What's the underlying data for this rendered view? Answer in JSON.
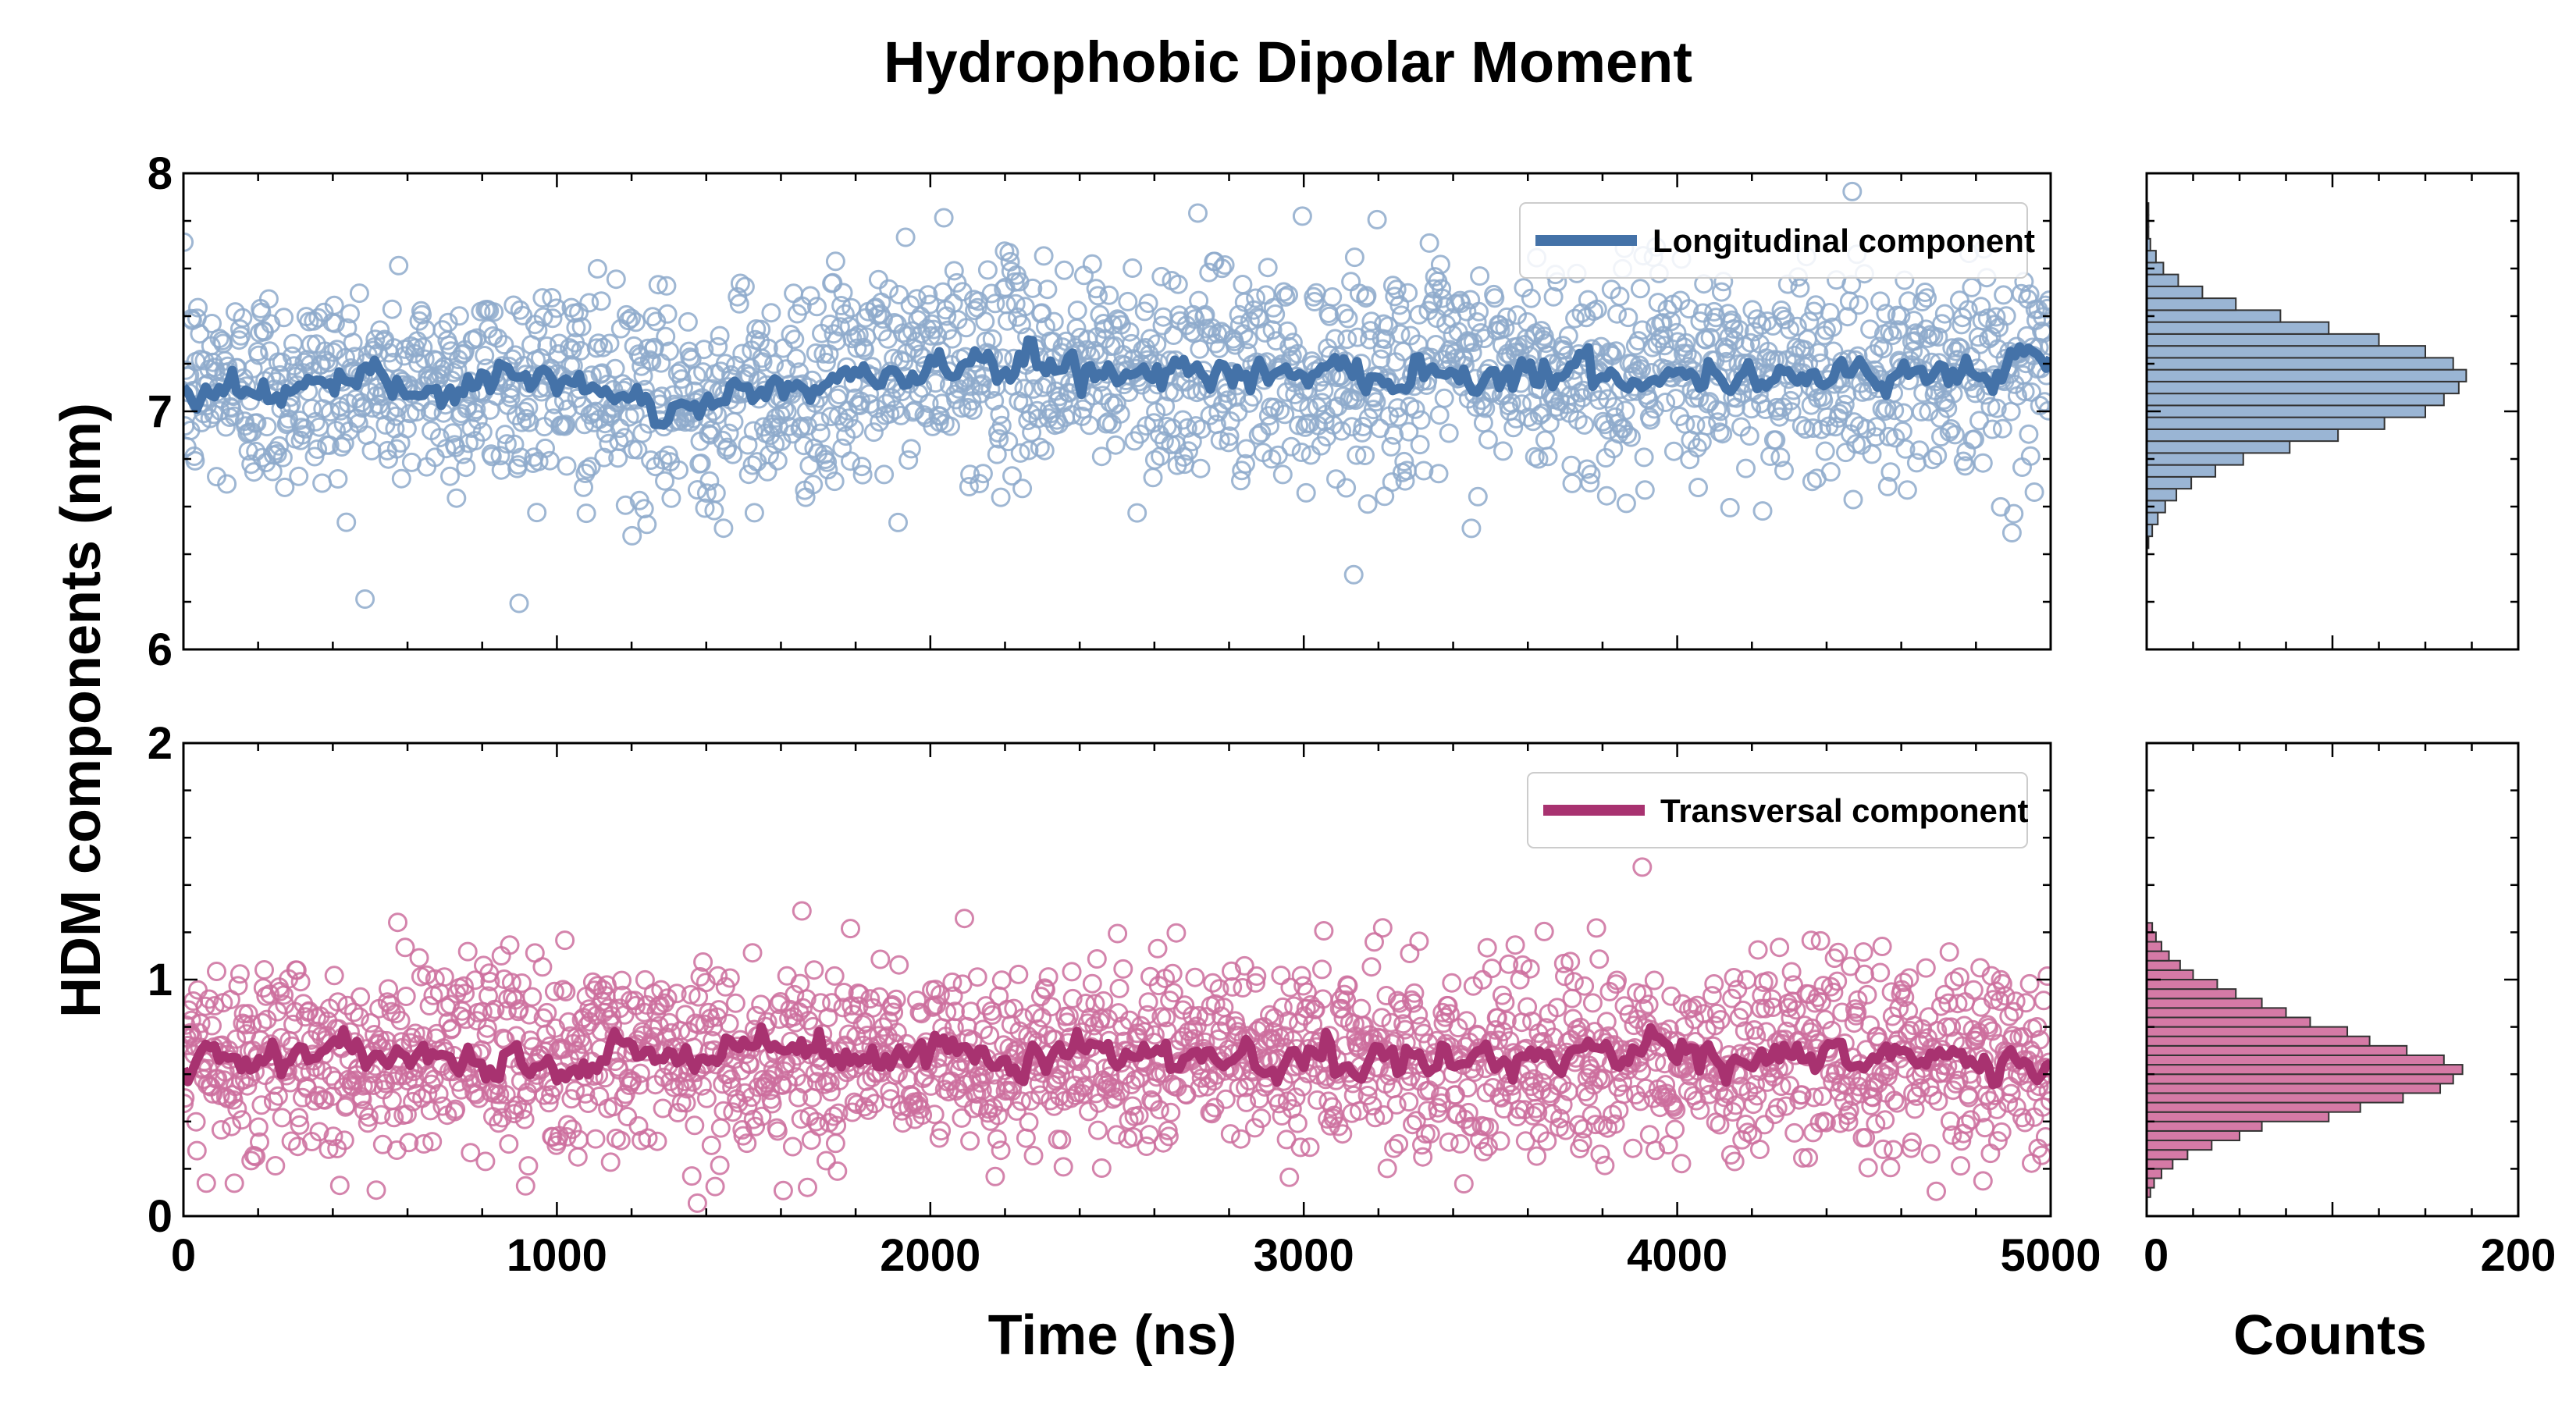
{
  "chart_data": {
    "title": "Hydrophobic Dipolar Moment",
    "ylabel": "HDM components (nm)",
    "xlabel": "Time (ns)",
    "hist_xlabel": "Counts",
    "colors": {
      "longitudinal": "#4472a8",
      "longitudinal_points": "#8eaacb",
      "longitudinal_hist": "#9ab5d4",
      "transversal": "#a83270",
      "transversal_points": "#cc6f9e",
      "transversal_hist": "#d57aa6"
    },
    "panels": [
      {
        "type": "scatter+line",
        "series_name": "Longitudinal component",
        "color_key": "longitudinal",
        "xlim": [
          0,
          5000
        ],
        "ylim": [
          6,
          8
        ],
        "xticks": [
          "0",
          "1000",
          "2000",
          "3000",
          "4000",
          "5000"
        ],
        "yticks": [
          "6",
          "7",
          "8"
        ],
        "show_xtick_labels": false,
        "running_mean_trend": {
          "x": [
            0,
            500,
            1000,
            1250,
            1500,
            1800,
            2000,
            2500,
            3000,
            3500,
            4000,
            4500,
            5000
          ],
          "y": [
            7.1,
            7.1,
            7.12,
            7.0,
            7.08,
            7.12,
            7.2,
            7.18,
            7.16,
            7.17,
            7.15,
            7.17,
            7.18
          ]
        },
        "point_spread_sd": 0.22,
        "n_points": 2000,
        "histogram": {
          "xlim": [
            0,
            200
          ],
          "xticks": [
            "0",
            "200"
          ],
          "bin_centers": [
            6.45,
            6.5,
            6.55,
            6.6,
            6.65,
            6.7,
            6.75,
            6.8,
            6.85,
            6.9,
            6.95,
            7.0,
            7.05,
            7.1,
            7.15,
            7.2,
            7.25,
            7.3,
            7.35,
            7.4,
            7.45,
            7.5,
            7.55,
            7.6,
            7.65,
            7.7,
            7.75,
            7.8,
            7.85
          ],
          "counts": [
            1,
            3,
            6,
            10,
            16,
            24,
            37,
            52,
            77,
            103,
            128,
            150,
            160,
            168,
            172,
            165,
            150,
            125,
            98,
            72,
            48,
            30,
            17,
            9,
            5,
            2,
            1,
            1,
            1
          ]
        }
      },
      {
        "type": "scatter+line",
        "series_name": "Transversal component",
        "color_key": "transversal",
        "xlim": [
          0,
          5000
        ],
        "ylim": [
          0,
          2
        ],
        "xticks": [
          "0",
          "1000",
          "2000",
          "3000",
          "4000",
          "5000"
        ],
        "yticks": [
          "0",
          "1",
          "2"
        ],
        "show_xtick_labels": true,
        "running_mean_trend": {
          "x": [
            0,
            500,
            1000,
            1500,
            2000,
            2500,
            3000,
            3500,
            4000,
            4500,
            5000
          ],
          "y": [
            0.66,
            0.68,
            0.67,
            0.68,
            0.67,
            0.69,
            0.67,
            0.67,
            0.68,
            0.67,
            0.66
          ]
        },
        "point_spread_sd": 0.2,
        "n_points": 2000,
        "histogram": {
          "xlim": [
            0,
            200
          ],
          "xticks": [
            "0",
            "200"
          ],
          "bin_centers": [
            0.1,
            0.14,
            0.18,
            0.22,
            0.26,
            0.3,
            0.34,
            0.38,
            0.42,
            0.46,
            0.5,
            0.54,
            0.58,
            0.62,
            0.66,
            0.7,
            0.74,
            0.78,
            0.82,
            0.86,
            0.9,
            0.94,
            0.98,
            1.02,
            1.06,
            1.1,
            1.14,
            1.18,
            1.22
          ],
          "counts": [
            2,
            4,
            8,
            14,
            22,
            35,
            50,
            62,
            98,
            115,
            138,
            158,
            165,
            170,
            160,
            140,
            120,
            108,
            88,
            75,
            62,
            48,
            38,
            25,
            18,
            12,
            8,
            5,
            3
          ]
        }
      }
    ]
  }
}
